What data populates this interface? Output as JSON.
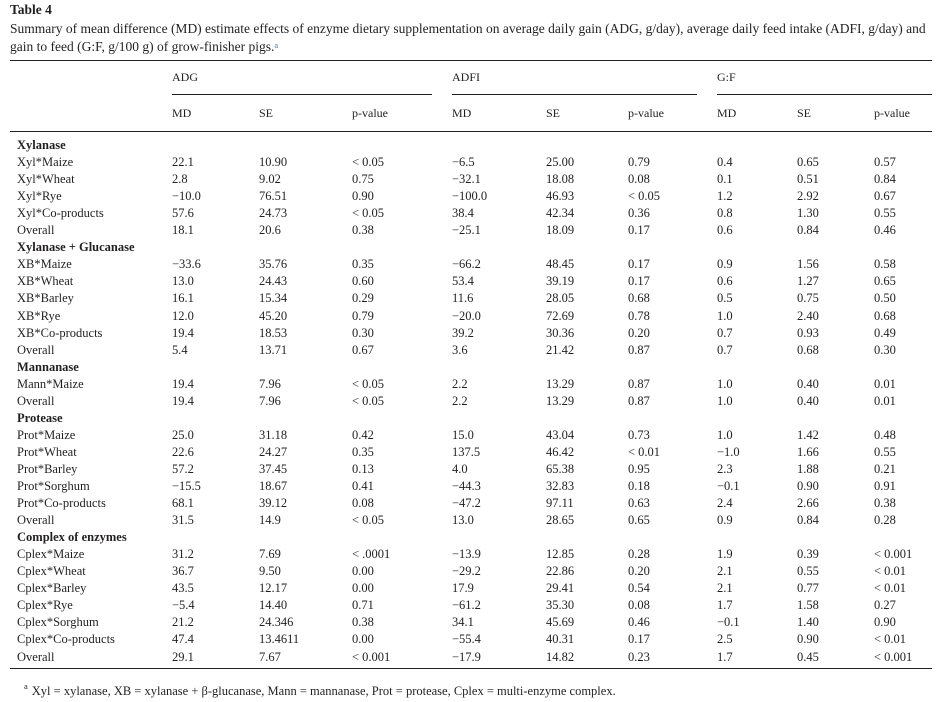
{
  "table": {
    "label": "Table 4",
    "caption": "Summary of mean difference (MD) estimate effects of enzyme dietary supplementation on average daily gain (ADG, g/day), average daily feed intake (ADFI, g/day) and gain to feed (G:F, g/100 g) of grow-finisher pigs.",
    "caption_marker": "a",
    "groups": [
      "ADG",
      "ADFI",
      "G:F"
    ],
    "subheaders": [
      "MD",
      "SE",
      "p-value",
      "MD",
      "SE",
      "p-value",
      "MD",
      "SE",
      "p-value"
    ],
    "sections": [
      {
        "title": "Xylanase",
        "rows": [
          [
            "Xyl*Maize",
            "22.1",
            "10.90",
            "< 0.05",
            "−6.5",
            "25.00",
            "0.79",
            "0.4",
            "0.65",
            "0.57"
          ],
          [
            "Xyl*Wheat",
            "2.8",
            "9.02",
            "0.75",
            "−32.1",
            "18.08",
            "0.08",
            "0.1",
            "0.51",
            "0.84"
          ],
          [
            "Xyl*Rye",
            "−10.0",
            "76.51",
            "0.90",
            "−100.0",
            "46.93",
            "< 0.05",
            "1.2",
            "2.92",
            "0.67"
          ],
          [
            "Xyl*Co-products",
            "57.6",
            "24.73",
            "< 0.05",
            "38.4",
            "42.34",
            "0.36",
            "0.8",
            "1.30",
            "0.55"
          ],
          [
            "Overall",
            "18.1",
            "20.6",
            "0.38",
            "−25.1",
            "18.09",
            "0.17",
            "0.6",
            "0.84",
            "0.46"
          ]
        ]
      },
      {
        "title": "Xylanase + Glucanase",
        "rows": [
          [
            "XB*Maize",
            "−33.6",
            "35.76",
            "0.35",
            "−66.2",
            "48.45",
            "0.17",
            "0.9",
            "1.56",
            "0.58"
          ],
          [
            "XB*Wheat",
            "13.0",
            "24.43",
            "0.60",
            "53.4",
            "39.19",
            "0.17",
            "0.6",
            "1.27",
            "0.65"
          ],
          [
            "XB*Barley",
            "16.1",
            "15.34",
            "0.29",
            "11.6",
            "28.05",
            "0.68",
            "0.5",
            "0.75",
            "0.50"
          ],
          [
            "XB*Rye",
            "12.0",
            "45.20",
            "0.79",
            "−20.0",
            "72.69",
            "0.78",
            "1.0",
            "2.40",
            "0.68"
          ],
          [
            "XB*Co-products",
            "19.4",
            "18.53",
            "0.30",
            "39.2",
            "30.36",
            "0.20",
            "0.7",
            "0.93",
            "0.49"
          ],
          [
            "Overall",
            "5.4",
            "13.71",
            "0.67",
            "3.6",
            "21.42",
            "0.87",
            "0.7",
            "0.68",
            "0.30"
          ]
        ]
      },
      {
        "title": "Mannanase",
        "rows": [
          [
            "Mann*Maize",
            "19.4",
            "7.96",
            "< 0.05",
            "2.2",
            "13.29",
            "0.87",
            "1.0",
            "0.40",
            "0.01"
          ],
          [
            "Overall",
            "19.4",
            "7.96",
            "< 0.05",
            "2.2",
            "13.29",
            "0.87",
            "1.0",
            "0.40",
            "0.01"
          ]
        ]
      },
      {
        "title": "Protease",
        "rows": [
          [
            "Prot*Maize",
            "25.0",
            "31.18",
            "0.42",
            "15.0",
            "43.04",
            "0.73",
            "1.0",
            "1.42",
            "0.48"
          ],
          [
            "Prot*Wheat",
            "22.6",
            "24.27",
            "0.35",
            "137.5",
            "46.42",
            "< 0.01",
            "−1.0",
            "1.66",
            "0.55"
          ],
          [
            "Prot*Barley",
            "57.2",
            "37.45",
            "0.13",
            "4.0",
            "65.38",
            "0.95",
            "2.3",
            "1.88",
            "0.21"
          ],
          [
            "Prot*Sorghum",
            "−15.5",
            "18.67",
            "0.41",
            "−44.3",
            "32.83",
            "0.18",
            "−0.1",
            "0.90",
            "0.91"
          ],
          [
            "Prot*Co-products",
            "68.1",
            "39.12",
            "0.08",
            "−47.2",
            "97.11",
            "0.63",
            "2.4",
            "2.66",
            "0.38"
          ],
          [
            "Overall",
            "31.5",
            "14.9",
            "< 0.05",
            "13.0",
            "28.65",
            "0.65",
            "0.9",
            "0.84",
            "0.28"
          ]
        ]
      },
      {
        "title": "Complex of enzymes",
        "rows": [
          [
            "Cplex*Maize",
            "31.2",
            "7.69",
            "< .0001",
            "−13.9",
            "12.85",
            "0.28",
            "1.9",
            "0.39",
            "< 0.001"
          ],
          [
            "Cplex*Wheat",
            "36.7",
            "9.50",
            "0.00",
            "−29.2",
            "22.86",
            "0.20",
            "2.1",
            "0.55",
            "< 0.01"
          ],
          [
            "Cplex*Barley",
            "43.5",
            "12.17",
            "0.00",
            "17.9",
            "29.41",
            "0.54",
            "2.1",
            "0.77",
            "< 0.01"
          ],
          [
            "Cplex*Rye",
            "−5.4",
            "14.40",
            "0.71",
            "−61.2",
            "35.30",
            "0.08",
            "1.7",
            "1.58",
            "0.27"
          ],
          [
            "Cplex*Sorghum",
            "21.2",
            "24.346",
            "0.38",
            "34.1",
            "45.69",
            "0.46",
            "−0.1",
            "1.40",
            "0.90"
          ],
          [
            "Cplex*Co-products",
            "47.4",
            "13.4611",
            "0.00",
            "−55.4",
            "40.31",
            "0.17",
            "2.5",
            "0.90",
            "< 0.01"
          ],
          [
            "Overall",
            "29.1",
            "7.67",
            "< 0.001",
            "−17.9",
            "14.82",
            "0.23",
            "1.7",
            "0.45",
            "< 0.001"
          ]
        ]
      }
    ],
    "footnote_marker": "a",
    "footnote": "Xyl = xylanase, XB = xylanase + β-glucanase, Mann = mannanase, Prot = protease, Cplex = multi-enzyme complex."
  }
}
